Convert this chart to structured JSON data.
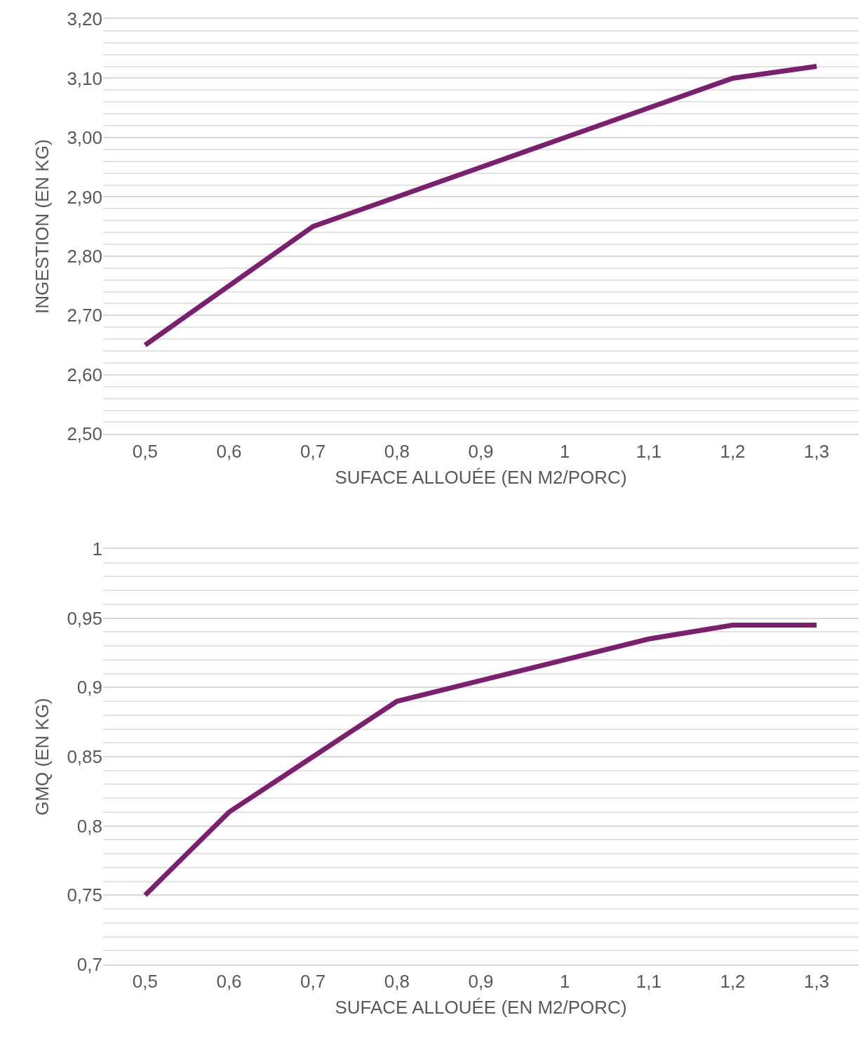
{
  "chart_data": [
    {
      "type": "line",
      "xlabel": "SUFACE ALLOUÉE (EN M2/PORC)",
      "ylabel": "INGESTION (EN KG)",
      "categories": [
        "0,5",
        "0,6",
        "0,7",
        "0,8",
        "0,9",
        "1",
        "1,1",
        "1,2",
        "1,3"
      ],
      "series": [
        {
          "color": "#7b1f6e",
          "values": [
            2.65,
            2.75,
            2.85,
            2.9,
            2.95,
            3.0,
            3.05,
            3.1,
            3.12
          ]
        }
      ],
      "ylim": [
        2.5,
        3.2
      ],
      "yticks": [
        {
          "value": 2.5,
          "label": "2,50"
        },
        {
          "value": 2.52,
          "label": null
        },
        {
          "value": 2.54,
          "label": null
        },
        {
          "value": 2.56,
          "label": null
        },
        {
          "value": 2.58,
          "label": null
        },
        {
          "value": 2.6,
          "label": "2,60"
        },
        {
          "value": 2.62,
          "label": null
        },
        {
          "value": 2.64,
          "label": null
        },
        {
          "value": 2.66,
          "label": null
        },
        {
          "value": 2.68,
          "label": null
        },
        {
          "value": 2.7,
          "label": "2,70"
        },
        {
          "value": 2.72,
          "label": null
        },
        {
          "value": 2.74,
          "label": null
        },
        {
          "value": 2.76,
          "label": null
        },
        {
          "value": 2.78,
          "label": null
        },
        {
          "value": 2.8,
          "label": "2,80"
        },
        {
          "value": 2.82,
          "label": null
        },
        {
          "value": 2.84,
          "label": null
        },
        {
          "value": 2.86,
          "label": null
        },
        {
          "value": 2.88,
          "label": null
        },
        {
          "value": 2.9,
          "label": "2,90"
        },
        {
          "value": 2.92,
          "label": null
        },
        {
          "value": 2.94,
          "label": null
        },
        {
          "value": 2.96,
          "label": null
        },
        {
          "value": 2.98,
          "label": null
        },
        {
          "value": 3.0,
          "label": "3,00"
        },
        {
          "value": 3.02,
          "label": null
        },
        {
          "value": 3.04,
          "label": null
        },
        {
          "value": 3.06,
          "label": null
        },
        {
          "value": 3.08,
          "label": null
        },
        {
          "value": 3.1,
          "label": "3,10"
        },
        {
          "value": 3.12,
          "label": null
        },
        {
          "value": 3.14,
          "label": null
        },
        {
          "value": 3.16,
          "label": null
        },
        {
          "value": 3.18,
          "label": null
        },
        {
          "value": 3.2,
          "label": "3,20"
        }
      ],
      "grid": "y",
      "marker": "none",
      "line_style": "solid"
    },
    {
      "type": "line",
      "xlabel": "SUFACE ALLOUÉE (EN M2/PORC)",
      "ylabel": "GMQ (EN KG)",
      "categories": [
        "0,5",
        "0,6",
        "0,7",
        "0,8",
        "0,9",
        "1",
        "1,1",
        "1,2",
        "1,3"
      ],
      "series": [
        {
          "color": "#7b1f6e",
          "values": [
            0.75,
            0.81,
            0.85,
            0.89,
            0.905,
            0.92,
            0.935,
            0.945,
            0.945
          ]
        }
      ],
      "ylim": [
        0.7,
        1.0
      ],
      "yticks": [
        {
          "value": 0.7,
          "label": "0,7"
        },
        {
          "value": 0.71,
          "label": null
        },
        {
          "value": 0.72,
          "label": null
        },
        {
          "value": 0.73,
          "label": null
        },
        {
          "value": 0.74,
          "label": null
        },
        {
          "value": 0.75,
          "label": "0,75"
        },
        {
          "value": 0.76,
          "label": null
        },
        {
          "value": 0.77,
          "label": null
        },
        {
          "value": 0.78,
          "label": null
        },
        {
          "value": 0.79,
          "label": null
        },
        {
          "value": 0.8,
          "label": "0,8"
        },
        {
          "value": 0.81,
          "label": null
        },
        {
          "value": 0.82,
          "label": null
        },
        {
          "value": 0.83,
          "label": null
        },
        {
          "value": 0.84,
          "label": null
        },
        {
          "value": 0.85,
          "label": "0,85"
        },
        {
          "value": 0.86,
          "label": null
        },
        {
          "value": 0.87,
          "label": null
        },
        {
          "value": 0.88,
          "label": null
        },
        {
          "value": 0.89,
          "label": null
        },
        {
          "value": 0.9,
          "label": "0,9"
        },
        {
          "value": 0.91,
          "label": null
        },
        {
          "value": 0.92,
          "label": null
        },
        {
          "value": 0.93,
          "label": null
        },
        {
          "value": 0.94,
          "label": null
        },
        {
          "value": 0.95,
          "label": "0,95"
        },
        {
          "value": 0.96,
          "label": null
        },
        {
          "value": 0.97,
          "label": null
        },
        {
          "value": 0.98,
          "label": null
        },
        {
          "value": 0.99,
          "label": null
        },
        {
          "value": 1.0,
          "label": "1"
        }
      ],
      "grid": "y",
      "marker": "none",
      "line_style": "solid"
    }
  ]
}
